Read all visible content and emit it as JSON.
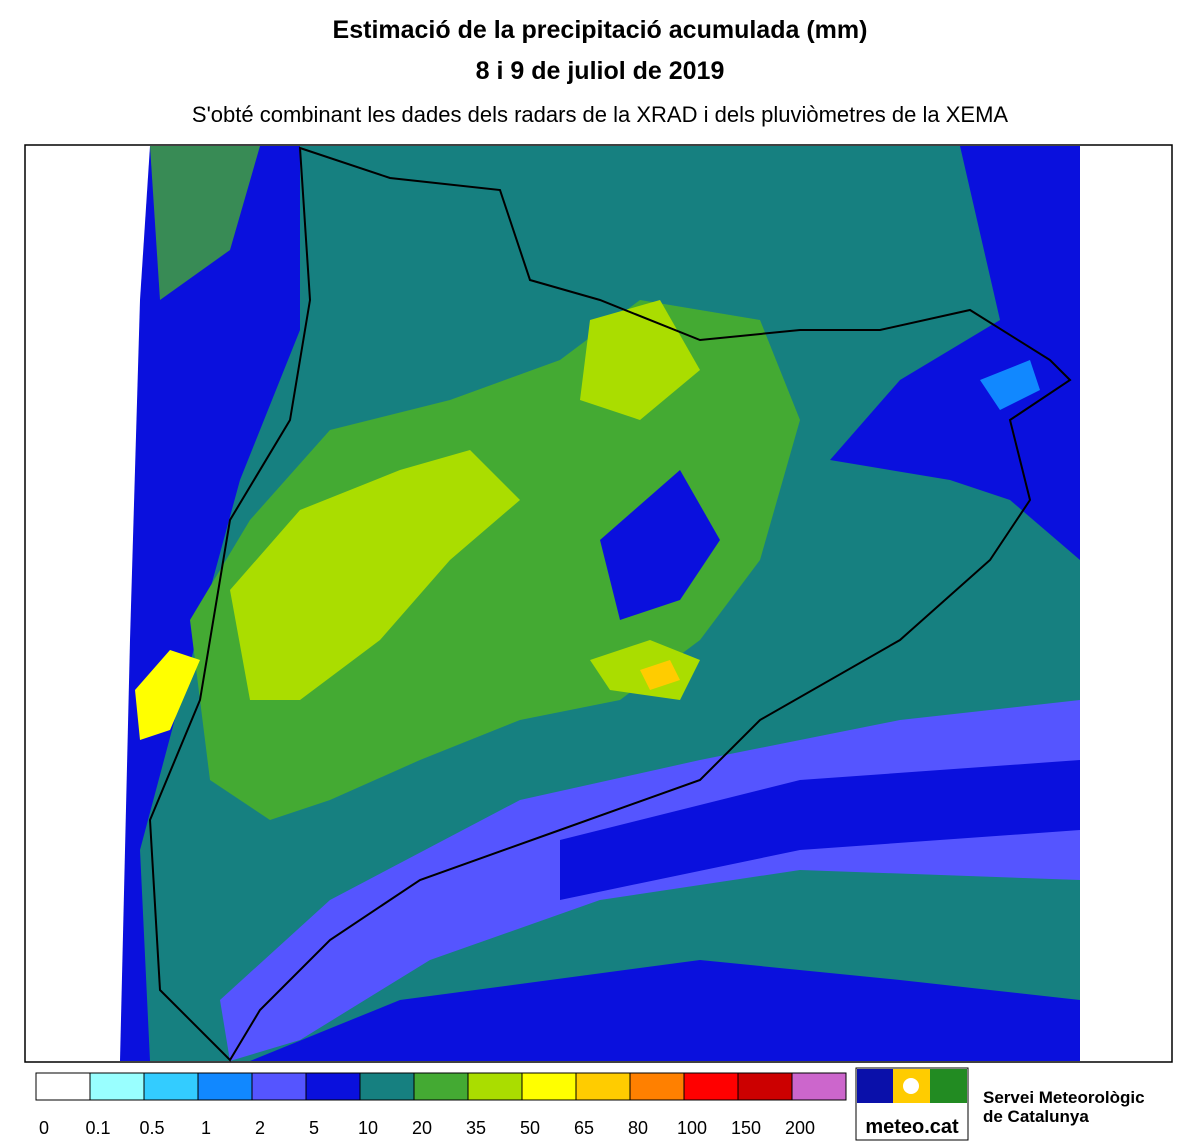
{
  "header": {
    "title": "Estimació de la precipitació acumulada (mm)",
    "date": "8 i 9 de juliol de 2019",
    "subtitle": "S'obté combinant les dades dels radars de la XRAD i dels pluviòmetres de la XEMA"
  },
  "legend": [
    {
      "label": "0",
      "color": "#ffffff"
    },
    {
      "label": "0.1",
      "color": "#99ffff"
    },
    {
      "label": "0.5",
      "color": "#33ccff"
    },
    {
      "label": "1",
      "color": "#1188ff"
    },
    {
      "label": "2",
      "color": "#5555ff"
    },
    {
      "label": "5",
      "color": "#0a10dd"
    },
    {
      "label": "10",
      "color": "#168080"
    },
    {
      "label": "20",
      "color": "#44aa33"
    },
    {
      "label": "35",
      "color": "#aadd00"
    },
    {
      "label": "50",
      "color": "#ffff00"
    },
    {
      "label": "65",
      "color": "#ffcc00"
    },
    {
      "label": "80",
      "color": "#ff8000"
    },
    {
      "label": "100",
      "color": "#ff0000"
    },
    {
      "label": "150",
      "color": "#cc0000"
    },
    {
      "label": "200",
      "color": "#cc66cc"
    }
  ],
  "logo": {
    "text": "meteo.cat"
  },
  "organization": {
    "line1": "Servei Meteorològic",
    "line2": "de Catalunya"
  }
}
